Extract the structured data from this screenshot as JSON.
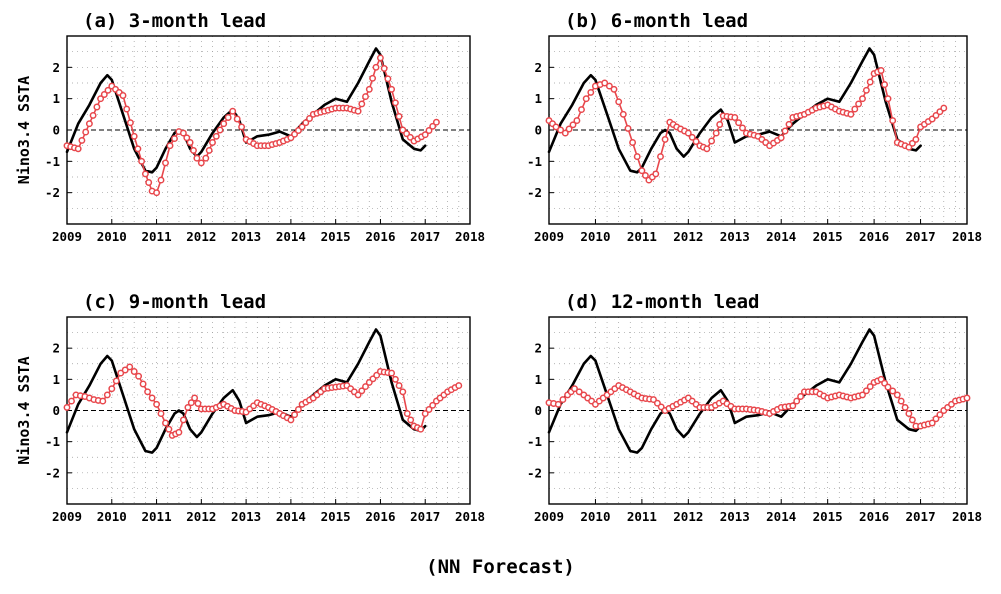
{
  "figure": {
    "caption": "(NN Forecast)"
  },
  "colors": {
    "observed": "#000000",
    "forecast": "#e8474c",
    "grid": "#9a9a9a"
  },
  "chart_data": [
    {
      "type": "line",
      "title": "(a) 3-month lead",
      "ylabel": "Nino3.4 SSTA",
      "xlim": [
        2009,
        2018
      ],
      "ylim": [
        -3,
        3
      ],
      "xticks": [
        "2009",
        "2010",
        "2011",
        "2012",
        "2013",
        "2014",
        "2015",
        "2016",
        "2017",
        "2018"
      ],
      "yticks": [
        "-2",
        "-1",
        "0",
        "1",
        "2"
      ],
      "grid": true,
      "series": [
        {
          "role": "observed",
          "style": "solid-black",
          "x": [
            2009.0,
            2009.25,
            2009.5,
            2009.75,
            2009.9,
            2010.0,
            2010.25,
            2010.5,
            2010.75,
            2010.9,
            2011.0,
            2011.2,
            2011.4,
            2011.5,
            2011.6,
            2011.75,
            2011.9,
            2012.0,
            2012.25,
            2012.5,
            2012.7,
            2012.85,
            2013.0,
            2013.25,
            2013.5,
            2013.75,
            2014.0,
            2014.25,
            2014.5,
            2014.75,
            2015.0,
            2015.25,
            2015.5,
            2015.75,
            2015.9,
            2016.0,
            2016.25,
            2016.5,
            2016.75,
            2016.9,
            2017.0
          ],
          "y": [
            -0.7,
            0.2,
            0.8,
            1.5,
            1.75,
            1.6,
            0.5,
            -0.6,
            -1.3,
            -1.35,
            -1.2,
            -0.6,
            -0.1,
            0.0,
            -0.1,
            -0.6,
            -0.85,
            -0.7,
            -0.1,
            0.4,
            0.65,
            0.3,
            -0.4,
            -0.2,
            -0.15,
            -0.05,
            -0.2,
            0.2,
            0.5,
            0.8,
            1.0,
            0.9,
            1.5,
            2.2,
            2.6,
            2.4,
            0.9,
            -0.3,
            -0.6,
            -0.65,
            -0.5
          ]
        },
        {
          "role": "forecast",
          "style": "red-circles",
          "x": [
            2009.0,
            2009.25,
            2009.5,
            2009.75,
            2010.0,
            2010.25,
            2010.5,
            2010.75,
            2010.9,
            2011.0,
            2011.1,
            2011.3,
            2011.5,
            2011.6,
            2011.75,
            2011.9,
            2012.0,
            2012.1,
            2012.25,
            2012.5,
            2012.7,
            2012.9,
            2013.0,
            2013.25,
            2013.5,
            2013.75,
            2014.0,
            2014.25,
            2014.5,
            2014.75,
            2015.0,
            2015.25,
            2015.5,
            2015.75,
            2015.9,
            2016.0,
            2016.25,
            2016.5,
            2016.75,
            2017.0,
            2017.25
          ],
          "y": [
            -0.5,
            -0.6,
            0.2,
            1.0,
            1.4,
            1.1,
            -0.2,
            -1.4,
            -1.95,
            -2.0,
            -1.6,
            -0.5,
            -0.05,
            -0.1,
            -0.4,
            -0.9,
            -1.05,
            -0.9,
            -0.4,
            0.2,
            0.6,
            0.1,
            -0.3,
            -0.5,
            -0.5,
            -0.4,
            -0.25,
            0.1,
            0.5,
            0.6,
            0.7,
            0.7,
            0.6,
            1.3,
            2.0,
            2.3,
            1.3,
            0.0,
            -0.35,
            -0.15,
            0.25
          ]
        }
      ]
    },
    {
      "type": "line",
      "title": "(b) 6-month lead",
      "ylabel": "",
      "xlim": [
        2009,
        2018
      ],
      "ylim": [
        -3,
        3
      ],
      "xticks": [
        "2009",
        "2010",
        "2011",
        "2012",
        "2013",
        "2014",
        "2015",
        "2016",
        "2017",
        "2018"
      ],
      "yticks": [
        "-2",
        "-1",
        "0",
        "1",
        "2"
      ],
      "grid": true,
      "series": [
        {
          "role": "observed",
          "style": "solid-black",
          "x": [
            2009.0,
            2009.25,
            2009.5,
            2009.75,
            2009.9,
            2010.0,
            2010.25,
            2010.5,
            2010.75,
            2010.9,
            2011.0,
            2011.2,
            2011.4,
            2011.5,
            2011.6,
            2011.75,
            2011.9,
            2012.0,
            2012.25,
            2012.5,
            2012.7,
            2012.85,
            2013.0,
            2013.25,
            2013.5,
            2013.75,
            2014.0,
            2014.25,
            2014.5,
            2014.75,
            2015.0,
            2015.25,
            2015.5,
            2015.75,
            2015.9,
            2016.0,
            2016.25,
            2016.5,
            2016.75,
            2016.9,
            2017.0
          ],
          "y": [
            -0.7,
            0.2,
            0.8,
            1.5,
            1.75,
            1.6,
            0.5,
            -0.6,
            -1.3,
            -1.35,
            -1.2,
            -0.6,
            -0.1,
            0.0,
            -0.1,
            -0.6,
            -0.85,
            -0.7,
            -0.1,
            0.4,
            0.65,
            0.3,
            -0.4,
            -0.2,
            -0.15,
            -0.05,
            -0.2,
            0.2,
            0.5,
            0.8,
            1.0,
            0.9,
            1.5,
            2.2,
            2.6,
            2.4,
            0.9,
            -0.3,
            -0.6,
            -0.65,
            -0.5
          ]
        },
        {
          "role": "forecast",
          "style": "red-circles",
          "x": [
            2009.0,
            2009.15,
            2009.35,
            2009.6,
            2009.8,
            2010.0,
            2010.2,
            2010.4,
            2010.6,
            2010.8,
            2011.0,
            2011.15,
            2011.3,
            2011.5,
            2011.6,
            2011.75,
            2012.0,
            2012.25,
            2012.4,
            2012.6,
            2012.75,
            2013.0,
            2013.25,
            2013.5,
            2013.75,
            2014.0,
            2014.25,
            2014.5,
            2014.75,
            2015.0,
            2015.25,
            2015.5,
            2015.75,
            2016.0,
            2016.15,
            2016.3,
            2016.5,
            2016.75,
            2016.9,
            2017.0,
            2017.25,
            2017.5
          ],
          "y": [
            0.3,
            0.1,
            -0.1,
            0.3,
            1.0,
            1.4,
            1.5,
            1.3,
            0.5,
            -0.4,
            -1.3,
            -1.6,
            -1.4,
            -0.3,
            0.25,
            0.1,
            -0.1,
            -0.5,
            -0.6,
            -0.1,
            0.45,
            0.4,
            -0.1,
            -0.2,
            -0.5,
            -0.25,
            0.4,
            0.5,
            0.7,
            0.8,
            0.6,
            0.5,
            1.0,
            1.8,
            1.9,
            1.0,
            -0.4,
            -0.55,
            -0.3,
            0.1,
            0.35,
            0.7
          ]
        }
      ]
    },
    {
      "type": "line",
      "title": "(c) 9-month lead",
      "ylabel": "Nino3.4 SSTA",
      "xlim": [
        2009,
        2018
      ],
      "ylim": [
        -3,
        3
      ],
      "xticks": [
        "2009",
        "2010",
        "2011",
        "2012",
        "2013",
        "2014",
        "2015",
        "2016",
        "2017",
        "2018"
      ],
      "yticks": [
        "-2",
        "-1",
        "0",
        "1",
        "2"
      ],
      "grid": true,
      "series": [
        {
          "role": "observed",
          "style": "solid-black",
          "x": [
            2009.0,
            2009.25,
            2009.5,
            2009.75,
            2009.9,
            2010.0,
            2010.25,
            2010.5,
            2010.75,
            2010.9,
            2011.0,
            2011.2,
            2011.4,
            2011.5,
            2011.6,
            2011.75,
            2011.9,
            2012.0,
            2012.25,
            2012.5,
            2012.7,
            2012.85,
            2013.0,
            2013.25,
            2013.5,
            2013.75,
            2014.0,
            2014.25,
            2014.5,
            2014.75,
            2015.0,
            2015.25,
            2015.5,
            2015.75,
            2015.9,
            2016.0,
            2016.25,
            2016.5,
            2016.75,
            2016.9,
            2017.0
          ],
          "y": [
            -0.7,
            0.2,
            0.8,
            1.5,
            1.75,
            1.6,
            0.5,
            -0.6,
            -1.3,
            -1.35,
            -1.2,
            -0.6,
            -0.1,
            0.0,
            -0.1,
            -0.6,
            -0.85,
            -0.7,
            -0.1,
            0.4,
            0.65,
            0.3,
            -0.4,
            -0.2,
            -0.15,
            -0.05,
            -0.2,
            0.2,
            0.5,
            0.8,
            1.0,
            0.9,
            1.5,
            2.2,
            2.6,
            2.4,
            0.9,
            -0.3,
            -0.6,
            -0.65,
            -0.5
          ]
        },
        {
          "role": "forecast",
          "style": "red-circles",
          "x": [
            2009.0,
            2009.2,
            2009.4,
            2009.6,
            2009.8,
            2010.0,
            2010.2,
            2010.4,
            2010.6,
            2010.8,
            2011.0,
            2011.2,
            2011.35,
            2011.5,
            2011.7,
            2011.85,
            2012.0,
            2012.25,
            2012.5,
            2012.75,
            2013.0,
            2013.25,
            2013.5,
            2013.75,
            2014.0,
            2014.25,
            2014.5,
            2014.75,
            2015.0,
            2015.25,
            2015.5,
            2015.75,
            2016.0,
            2016.25,
            2016.5,
            2016.6,
            2016.75,
            2016.9,
            2017.0,
            2017.25,
            2017.5,
            2017.75
          ],
          "y": [
            0.1,
            0.5,
            0.45,
            0.35,
            0.3,
            0.7,
            1.2,
            1.4,
            1.1,
            0.6,
            0.2,
            -0.4,
            -0.8,
            -0.7,
            0.1,
            0.4,
            0.05,
            0.05,
            0.2,
            0.0,
            -0.05,
            0.25,
            0.1,
            -0.1,
            -0.3,
            0.2,
            0.4,
            0.7,
            0.75,
            0.8,
            0.5,
            0.9,
            1.25,
            1.2,
            0.6,
            -0.1,
            -0.5,
            -0.6,
            -0.1,
            0.3,
            0.6,
            0.8
          ]
        }
      ]
    },
    {
      "type": "line",
      "title": "(d) 12-month lead",
      "ylabel": "",
      "xlim": [
        2009,
        2018
      ],
      "ylim": [
        -3,
        3
      ],
      "xticks": [
        "2009",
        "2010",
        "2011",
        "2012",
        "2013",
        "2014",
        "2015",
        "2016",
        "2017",
        "2018"
      ],
      "yticks": [
        "-2",
        "-1",
        "0",
        "1",
        "2"
      ],
      "grid": true,
      "series": [
        {
          "role": "observed",
          "style": "solid-black",
          "x": [
            2009.0,
            2009.25,
            2009.5,
            2009.75,
            2009.9,
            2010.0,
            2010.25,
            2010.5,
            2010.75,
            2010.9,
            2011.0,
            2011.2,
            2011.4,
            2011.5,
            2011.6,
            2011.75,
            2011.9,
            2012.0,
            2012.25,
            2012.5,
            2012.7,
            2012.85,
            2013.0,
            2013.25,
            2013.5,
            2013.75,
            2014.0,
            2014.25,
            2014.5,
            2014.75,
            2015.0,
            2015.25,
            2015.5,
            2015.75,
            2015.9,
            2016.0,
            2016.25,
            2016.5,
            2016.75,
            2016.9,
            2017.0
          ],
          "y": [
            -0.7,
            0.2,
            0.8,
            1.5,
            1.75,
            1.6,
            0.5,
            -0.6,
            -1.3,
            -1.35,
            -1.2,
            -0.6,
            -0.1,
            0.0,
            -0.1,
            -0.6,
            -0.85,
            -0.7,
            -0.1,
            0.4,
            0.65,
            0.3,
            -0.4,
            -0.2,
            -0.15,
            -0.05,
            -0.2,
            0.2,
            0.5,
            0.8,
            1.0,
            0.9,
            1.5,
            2.2,
            2.6,
            2.4,
            0.9,
            -0.3,
            -0.6,
            -0.65,
            -0.5
          ]
        },
        {
          "role": "forecast",
          "style": "red-circles",
          "x": [
            2009.0,
            2009.2,
            2009.4,
            2009.55,
            2009.75,
            2010.0,
            2010.25,
            2010.5,
            2010.75,
            2011.0,
            2011.25,
            2011.5,
            2011.75,
            2012.0,
            2012.25,
            2012.5,
            2012.75,
            2013.0,
            2013.25,
            2013.5,
            2013.75,
            2014.0,
            2014.25,
            2014.5,
            2014.75,
            2015.0,
            2015.25,
            2015.5,
            2015.75,
            2016.0,
            2016.15,
            2016.3,
            2016.5,
            2016.75,
            2016.9,
            2017.0,
            2017.25,
            2017.5,
            2017.75,
            2018.0
          ],
          "y": [
            0.25,
            0.2,
            0.5,
            0.7,
            0.5,
            0.2,
            0.5,
            0.8,
            0.6,
            0.4,
            0.35,
            0.0,
            0.2,
            0.4,
            0.1,
            0.1,
            0.3,
            0.05,
            0.05,
            0.0,
            -0.1,
            0.1,
            0.15,
            0.6,
            0.6,
            0.4,
            0.5,
            0.4,
            0.5,
            0.9,
            1.0,
            0.75,
            0.5,
            -0.1,
            -0.5,
            -0.5,
            -0.4,
            0.0,
            0.3,
            0.4
          ]
        }
      ]
    }
  ]
}
